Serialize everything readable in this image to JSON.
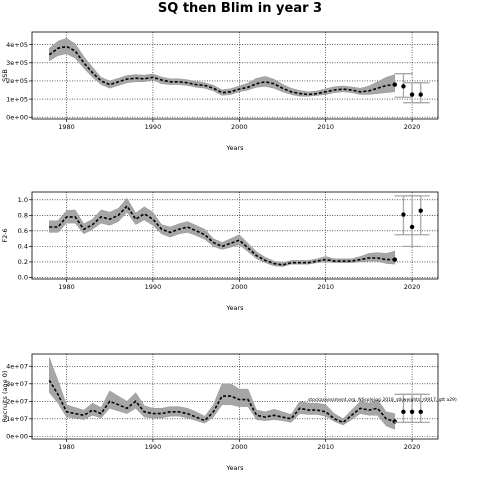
{
  "figure_title": "SQ then Blim in year 3",
  "chart_data": [
    {
      "type": "line",
      "title": "",
      "xlabel": "Years",
      "ylabel": "SSB",
      "xlim": [
        1976,
        2023
      ],
      "ylim": [
        -10000,
        470000
      ],
      "x_ticks": [
        1980,
        1990,
        2000,
        2010,
        2020
      ],
      "x_tick_labels": [
        "1980",
        "1990",
        "2000",
        "2010",
        "2020"
      ],
      "y_ticks": [
        0,
        100000,
        200000,
        300000,
        400000
      ],
      "y_tick_labels": [
        "0e+00",
        "1e+05",
        "2e+05",
        "3e+05",
        "4e+05"
      ],
      "grid": "dotted, at ticks",
      "series": [
        {
          "x": [
            1978,
            1979,
            1980,
            1981,
            1982,
            1983,
            1984,
            1985,
            1986,
            1987,
            1988,
            1989,
            1990,
            1991,
            1992,
            1993,
            1994,
            1995,
            1996,
            1997,
            1998,
            1999,
            2000,
            2001,
            2002,
            2003,
            2004,
            2005,
            2006,
            2007,
            2008,
            2009,
            2010,
            2011,
            2012,
            2013,
            2014,
            2015,
            2016,
            2017,
            2018
          ],
          "median": [
            345000,
            380000,
            390000,
            365000,
            300000,
            245000,
            200000,
            180000,
            195000,
            210000,
            215000,
            212000,
            220000,
            205000,
            195000,
            195000,
            190000,
            180000,
            175000,
            160000,
            135000,
            140000,
            155000,
            165000,
            185000,
            195000,
            185000,
            160000,
            140000,
            130000,
            125000,
            130000,
            140000,
            150000,
            155000,
            150000,
            140000,
            145000,
            160000,
            175000,
            180000
          ],
          "lower": [
            310000,
            340000,
            350000,
            325000,
            270000,
            220000,
            180000,
            160000,
            175000,
            190000,
            195000,
            195000,
            205000,
            185000,
            180000,
            180000,
            175000,
            165000,
            160000,
            145000,
            120000,
            125000,
            140000,
            150000,
            165000,
            170000,
            160000,
            140000,
            125000,
            115000,
            115000,
            120000,
            125000,
            135000,
            140000,
            135000,
            125000,
            125000,
            130000,
            135000,
            140000
          ],
          "upper": [
            380000,
            420000,
            435000,
            405000,
            335000,
            275000,
            220000,
            200000,
            215000,
            230000,
            235000,
            232000,
            238000,
            222000,
            212000,
            212000,
            207000,
            197000,
            190000,
            176000,
            151000,
            157000,
            172000,
            188000,
            215000,
            225000,
            210000,
            182000,
            160000,
            147000,
            140000,
            145000,
            157000,
            168000,
            172000,
            167000,
            160000,
            172000,
            195000,
            220000,
            235000
          ]
        }
      ],
      "projection_x": [
        2019,
        2020,
        2021
      ],
      "projection_median": [
        170000,
        125000,
        125000
      ],
      "projection_lower": [
        110000,
        80000,
        80000
      ],
      "projection_upper": [
        240000,
        190000,
        190000
      ]
    },
    {
      "type": "line",
      "title": "",
      "xlabel": "Years",
      "ylabel": "F2-6",
      "xlim": [
        1976,
        2023
      ],
      "ylim": [
        -0.02,
        1.1
      ],
      "x_ticks": [
        1980,
        1990,
        2000,
        2010,
        2020
      ],
      "x_tick_labels": [
        "1980",
        "1990",
        "2000",
        "2010",
        "2020"
      ],
      "y_ticks": [
        0.0,
        0.2,
        0.4,
        0.6,
        0.8,
        1.0
      ],
      "y_tick_labels": [
        "0.0",
        "0.2",
        "0.4",
        "0.6",
        "0.8",
        "1.0"
      ],
      "grid": "dotted, at ticks",
      "series": [
        {
          "x": [
            1978,
            1979,
            1980,
            1981,
            1982,
            1983,
            1984,
            1985,
            1986,
            1987,
            1988,
            1989,
            1990,
            1991,
            1992,
            1993,
            1994,
            1995,
            1996,
            1997,
            1998,
            1999,
            2000,
            2001,
            2002,
            2003,
            2004,
            2005,
            2006,
            2007,
            2008,
            2009,
            2010,
            2011,
            2012,
            2013,
            2014,
            2015,
            2016,
            2017,
            2018
          ],
          "median": [
            0.65,
            0.65,
            0.78,
            0.78,
            0.62,
            0.68,
            0.78,
            0.75,
            0.8,
            0.92,
            0.75,
            0.82,
            0.75,
            0.62,
            0.58,
            0.62,
            0.65,
            0.6,
            0.55,
            0.45,
            0.4,
            0.44,
            0.48,
            0.38,
            0.28,
            0.22,
            0.18,
            0.16,
            0.19,
            0.19,
            0.19,
            0.21,
            0.23,
            0.21,
            0.21,
            0.21,
            0.23,
            0.25,
            0.25,
            0.23,
            0.23
          ],
          "lower": [
            0.58,
            0.58,
            0.7,
            0.7,
            0.56,
            0.62,
            0.7,
            0.67,
            0.72,
            0.84,
            0.68,
            0.74,
            0.67,
            0.56,
            0.52,
            0.56,
            0.58,
            0.54,
            0.49,
            0.4,
            0.36,
            0.39,
            0.42,
            0.33,
            0.24,
            0.19,
            0.15,
            0.14,
            0.17,
            0.17,
            0.17,
            0.19,
            0.2,
            0.19,
            0.19,
            0.19,
            0.2,
            0.21,
            0.21,
            0.18,
            0.17
          ],
          "upper": [
            0.73,
            0.73,
            0.86,
            0.87,
            0.69,
            0.75,
            0.87,
            0.84,
            0.89,
            1.02,
            0.83,
            0.91,
            0.84,
            0.68,
            0.65,
            0.69,
            0.72,
            0.67,
            0.62,
            0.5,
            0.45,
            0.5,
            0.55,
            0.44,
            0.33,
            0.26,
            0.21,
            0.19,
            0.22,
            0.22,
            0.22,
            0.24,
            0.27,
            0.24,
            0.24,
            0.24,
            0.27,
            0.31,
            0.32,
            0.31,
            0.34
          ]
        }
      ],
      "projection_x": [
        2019,
        2020,
        2021
      ],
      "projection_median": [
        0.81,
        0.65,
        0.86
      ],
      "projection_lower": [
        0.55,
        0.4,
        0.55
      ],
      "projection_upper": [
        1.05,
        1.05,
        1.05
      ]
    },
    {
      "type": "line",
      "title": "",
      "xlabel": "Years",
      "ylabel": "Recruits (age 0)",
      "xlim": [
        1976,
        2023
      ],
      "ylim": [
        -1500000,
        47000000
      ],
      "x_ticks": [
        1980,
        1990,
        2000,
        2010,
        2020
      ],
      "x_tick_labels": [
        "1980",
        "1990",
        "2000",
        "2010",
        "2020"
      ],
      "y_ticks": [
        0,
        10000000,
        20000000,
        30000000,
        40000000
      ],
      "y_tick_labels": [
        "0e+00",
        "1e+07",
        "2e+07",
        "3e+07",
        "4e+07"
      ],
      "grid": "dotted, at ticks",
      "annotation": "stockassessment.org, NSsole(og 2018_stkweights_r0917, gtt a29)",
      "series": [
        {
          "x": [
            1978,
            1979,
            1980,
            1981,
            1982,
            1983,
            1984,
            1985,
            1986,
            1987,
            1988,
            1989,
            1990,
            1991,
            1992,
            1993,
            1994,
            1995,
            1996,
            1997,
            1998,
            1999,
            2000,
            2001,
            2002,
            2003,
            2004,
            2005,
            2006,
            2007,
            2008,
            2009,
            2010,
            2011,
            2012,
            2013,
            2014,
            2015,
            2016,
            2017,
            2018
          ],
          "median": [
            32000000,
            24000000,
            14000000,
            13000000,
            12000000,
            15000000,
            13000000,
            20000000,
            18000000,
            16000000,
            20000000,
            14000000,
            13000000,
            13000000,
            14000000,
            14000000,
            13000000,
            11000000,
            9000000,
            14000000,
            23000000,
            23000000,
            21000000,
            21000000,
            12000000,
            11000000,
            12000000,
            11000000,
            10000000,
            16000000,
            15000000,
            15000000,
            14000000,
            10000000,
            8000000,
            12000000,
            16000000,
            15000000,
            16000000,
            10000000,
            8500000
          ],
          "lower": [
            25000000,
            19000000,
            11000000,
            10500000,
            9500000,
            12000000,
            10500000,
            16000000,
            14500000,
            13000000,
            16000000,
            11000000,
            10500000,
            10500000,
            11500000,
            11500000,
            10500000,
            9000000,
            7500000,
            11000000,
            18000000,
            18000000,
            17000000,
            17000000,
            9500000,
            9000000,
            9500000,
            9000000,
            8000000,
            13000000,
            12500000,
            12500000,
            11500000,
            8500000,
            6500000,
            9500000,
            13000000,
            12000000,
            12000000,
            6000000,
            4000000
          ],
          "upper": [
            45000000,
            32000000,
            18000000,
            16500000,
            15000000,
            19000000,
            16500000,
            26000000,
            23000000,
            20000000,
            25000000,
            17500000,
            16000000,
            16000000,
            17000000,
            17000000,
            16000000,
            14000000,
            11500000,
            18000000,
            30000000,
            30000000,
            27000000,
            27000000,
            15000000,
            14000000,
            15500000,
            14000000,
            12500000,
            20000000,
            19000000,
            19000000,
            18000000,
            13000000,
            10000000,
            15000000,
            20000000,
            19000000,
            21000000,
            14000000,
            13000000
          ]
        }
      ],
      "projection_x": [
        2019,
        2020,
        2021
      ],
      "projection_median": [
        14000000,
        14000000,
        14000000
      ],
      "projection_lower": [
        8000000,
        8000000,
        8000000
      ],
      "projection_upper": [
        24000000,
        24000000,
        24000000
      ]
    }
  ]
}
